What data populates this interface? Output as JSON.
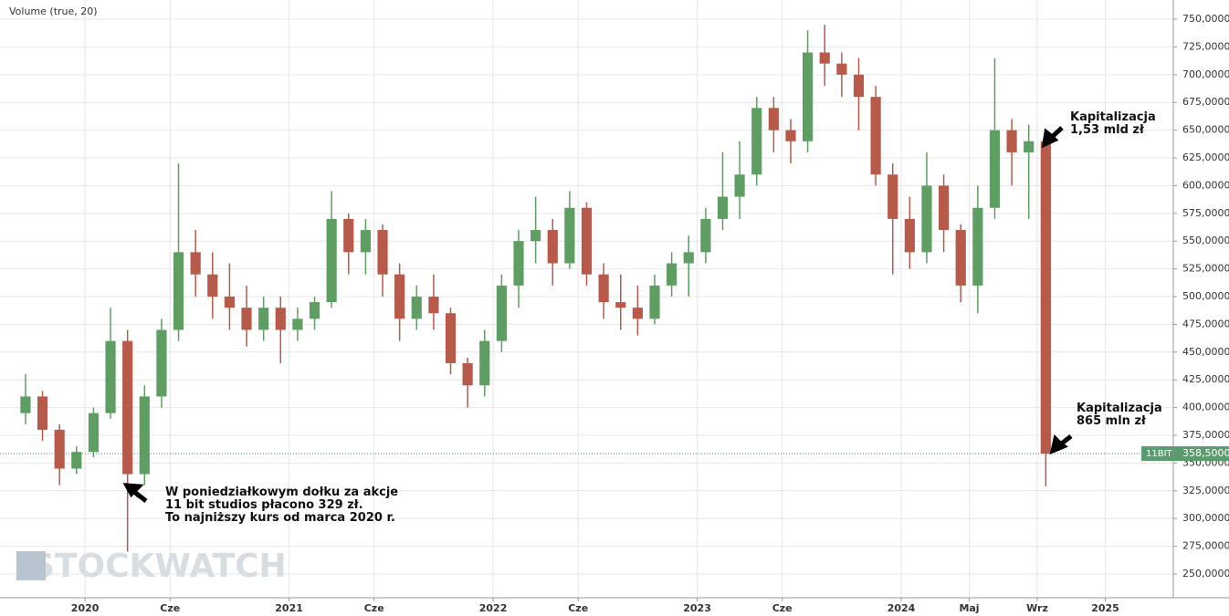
{
  "chart_data": {
    "type": "candlestick",
    "title": "Volume (true, 20)",
    "watermark": "STOCKWATCH",
    "x": [
      "2019-09",
      "2019-10",
      "2019-11",
      "2019-12",
      "2020-01",
      "2020-02",
      "2020-03",
      "2020-04",
      "2020-05",
      "2020-06",
      "2020-07",
      "2020-08",
      "2020-09",
      "2020-10",
      "2020-11",
      "2020-12",
      "2021-01",
      "2021-02",
      "2021-03",
      "2021-04",
      "2021-05",
      "2021-06",
      "2021-07",
      "2021-08",
      "2021-09",
      "2021-10",
      "2021-11",
      "2021-12",
      "2022-01",
      "2022-02",
      "2022-03",
      "2022-04",
      "2022-05",
      "2022-06",
      "2022-07",
      "2022-08",
      "2022-09",
      "2022-10",
      "2022-11",
      "2022-12",
      "2023-01",
      "2023-02",
      "2023-03",
      "2023-04",
      "2023-05",
      "2023-06",
      "2023-07",
      "2023-08",
      "2023-09",
      "2023-10",
      "2023-11",
      "2023-12",
      "2024-01",
      "2024-02",
      "2024-03",
      "2024-04",
      "2024-05",
      "2024-06",
      "2024-07",
      "2024-08",
      "2024-09"
    ],
    "open": [
      395,
      410,
      380,
      345,
      360,
      395,
      460,
      340,
      410,
      470,
      540,
      520,
      500,
      490,
      470,
      490,
      470,
      480,
      495,
      570,
      540,
      560,
      520,
      480,
      500,
      485,
      440,
      420,
      460,
      510,
      550,
      560,
      530,
      580,
      520,
      495,
      490,
      480,
      510,
      530,
      540,
      570,
      590,
      610,
      670,
      650,
      640,
      720,
      710,
      700,
      680,
      610,
      570,
      540,
      600,
      560,
      510,
      580,
      650,
      630,
      640
    ],
    "high": [
      430,
      415,
      385,
      365,
      400,
      490,
      470,
      420,
      480,
      620,
      560,
      540,
      530,
      510,
      500,
      500,
      490,
      500,
      595,
      575,
      570,
      565,
      530,
      510,
      520,
      490,
      445,
      470,
      520,
      560,
      590,
      570,
      595,
      585,
      530,
      520,
      510,
      520,
      540,
      555,
      580,
      630,
      640,
      680,
      680,
      660,
      740,
      745,
      720,
      715,
      690,
      620,
      590,
      630,
      610,
      565,
      600,
      715,
      660,
      655,
      645
    ],
    "low": [
      385,
      370,
      330,
      340,
      355,
      390,
      270,
      330,
      400,
      460,
      500,
      480,
      470,
      455,
      460,
      440,
      460,
      470,
      490,
      520,
      520,
      500,
      460,
      470,
      470,
      430,
      400,
      410,
      450,
      490,
      530,
      510,
      525,
      510,
      480,
      470,
      465,
      475,
      500,
      500,
      530,
      560,
      570,
      600,
      630,
      620,
      630,
      690,
      680,
      650,
      600,
      520,
      525,
      530,
      540,
      495,
      485,
      570,
      600,
      570,
      329
    ],
    "close": [
      410,
      380,
      345,
      360,
      395,
      460,
      340,
      410,
      470,
      540,
      520,
      500,
      490,
      470,
      490,
      470,
      480,
      495,
      570,
      540,
      560,
      520,
      480,
      500,
      485,
      440,
      420,
      460,
      510,
      550,
      560,
      530,
      580,
      520,
      495,
      490,
      480,
      510,
      530,
      540,
      570,
      590,
      610,
      670,
      650,
      640,
      720,
      710,
      700,
      680,
      610,
      570,
      540,
      600,
      560,
      510,
      580,
      650,
      630,
      640,
      358.5
    ],
    "up_color": "#5e9e62",
    "down_color": "#b85a4a",
    "xlim": [
      "2019-08",
      "2025-05"
    ],
    "xticks": [
      {
        "value": "2020-01",
        "label": "2020"
      },
      {
        "value": "2020-06",
        "label": "Cze"
      },
      {
        "value": "2021-01",
        "label": "2021"
      },
      {
        "value": "2021-06",
        "label": "Cze"
      },
      {
        "value": "2022-01",
        "label": "2022"
      },
      {
        "value": "2022-06",
        "label": "Cze"
      },
      {
        "value": "2023-01",
        "label": "2023"
      },
      {
        "value": "2023-06",
        "label": "Cze"
      },
      {
        "value": "2024-01",
        "label": "2024"
      },
      {
        "value": "2024-05",
        "label": "Maj"
      },
      {
        "value": "2024-09",
        "label": "Wrz"
      },
      {
        "value": "2025-01",
        "label": "2025"
      }
    ],
    "ylim": [
      228.6,
      767.3
    ],
    "yticks": [
      {
        "value": 250,
        "label": "250,0000"
      },
      {
        "value": 275,
        "label": "275,0000"
      },
      {
        "value": 300,
        "label": "300,0000"
      },
      {
        "value": 325,
        "label": "325,0000"
      },
      {
        "value": 350,
        "label": "350,0000"
      },
      {
        "value": 375,
        "label": "375,0000"
      },
      {
        "value": 400,
        "label": "400,0000"
      },
      {
        "value": 425,
        "label": "425,0000"
      },
      {
        "value": 450,
        "label": "450,0000"
      },
      {
        "value": 475,
        "label": "475,0000"
      },
      {
        "value": 500,
        "label": "500,0000"
      },
      {
        "value": 525,
        "label": "525,0000"
      },
      {
        "value": 550,
        "label": "550,0000"
      },
      {
        "value": 575,
        "label": "575,0000"
      },
      {
        "value": 600,
        "label": "600,0000"
      },
      {
        "value": 625,
        "label": "625,0000"
      },
      {
        "value": 650,
        "label": "650,0000"
      },
      {
        "value": 675,
        "label": "675,0000"
      },
      {
        "value": 700,
        "label": "700,0000"
      },
      {
        "value": 725,
        "label": "725,0000"
      },
      {
        "value": 750,
        "label": "750,0000"
      }
    ],
    "grid": true,
    "last_price": {
      "name": "11BIT",
      "value": 358.5,
      "value_label": "358,5000",
      "color": "#5b9b6e"
    },
    "annotations": [
      {
        "lines": [
          "W poniedziałkowym dołku za akcje",
          "11 bit studios płacono 329 zł.",
          "To najniższy kurs od marca 2020 r."
        ]
      },
      {
        "lines": [
          "Kapitalizacja",
          "1,53 mld zł"
        ]
      },
      {
        "lines": [
          "Kapitalizacja",
          "865 mln zł"
        ]
      }
    ]
  }
}
